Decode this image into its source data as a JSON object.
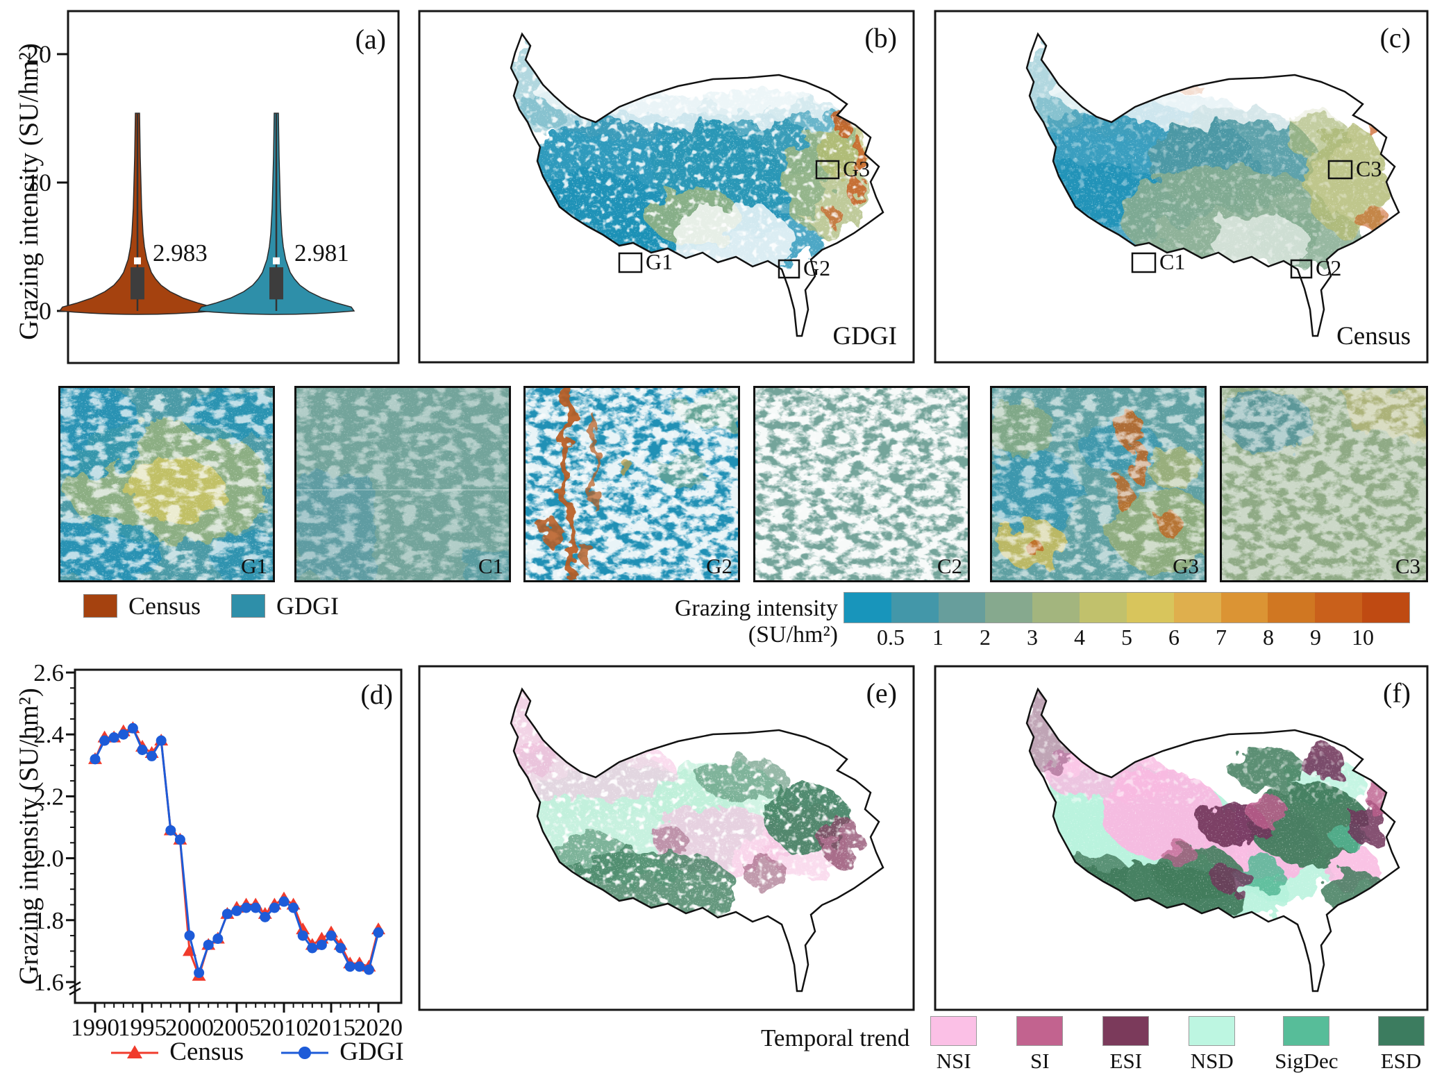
{
  "panels": {
    "a": "(a)",
    "b": "(b)",
    "c": "(c)",
    "d": "(d)",
    "e": "(e)",
    "f": "(f)"
  },
  "tiles": [
    {
      "label": "G1"
    },
    {
      "label": "C1"
    },
    {
      "label": "G2"
    },
    {
      "label": "C2"
    },
    {
      "label": "G3"
    },
    {
      "label": "C3"
    }
  ],
  "chart_data": [
    {
      "id": "a",
      "type": "violin",
      "ylabel": "Grazing intensity (SU/hm²)",
      "yticks": [
        0,
        10,
        20
      ],
      "ylim": [
        0,
        21
      ],
      "groups": [
        {
          "name": "Census",
          "color": "#A5420F",
          "mean": 2.983,
          "mean_label": "2.983",
          "q1": 0.9,
          "q3": 3.4,
          "mean_marker": 3.9,
          "max": 15.4
        },
        {
          "name": "GDGI",
          "color": "#2E8FA9",
          "mean": 2.981,
          "mean_label": "2.981",
          "q1": 0.9,
          "q3": 3.4,
          "mean_marker": 3.9,
          "max": 15.4
        }
      ]
    },
    {
      "id": "d",
      "type": "line",
      "ylabel": "Grazing intensity (SU/hm²)",
      "ylim": [
        1.6,
        2.6
      ],
      "yticks": [
        "1.6",
        "1.8",
        "2.0",
        "2.2",
        "2.4",
        "2.6"
      ],
      "xticks": [
        1990,
        1995,
        2000,
        2005,
        2010,
        2015,
        2020
      ],
      "axis_break_below": 1.6,
      "x": [
        1990,
        1991,
        1992,
        1993,
        1994,
        1995,
        1996,
        1997,
        1998,
        1999,
        2000,
        2001,
        2002,
        2003,
        2004,
        2005,
        2006,
        2007,
        2008,
        2009,
        2010,
        2011,
        2012,
        2013,
        2014,
        2015,
        2016,
        2017,
        2018,
        2019,
        2020
      ],
      "series": [
        {
          "name": "Census",
          "color": "#F03B2C",
          "marker": "triangle",
          "values": [
            2.32,
            2.39,
            2.39,
            2.41,
            2.42,
            2.36,
            2.34,
            2.38,
            2.09,
            2.06,
            1.7,
            1.62,
            1.72,
            1.74,
            1.82,
            1.84,
            1.85,
            1.85,
            1.82,
            1.85,
            1.87,
            1.85,
            1.77,
            1.72,
            1.74,
            1.76,
            1.72,
            1.66,
            1.66,
            1.65,
            1.77
          ]
        },
        {
          "name": "GDGI",
          "color": "#1D5BD8",
          "marker": "circle",
          "values": [
            2.32,
            2.38,
            2.39,
            2.4,
            2.42,
            2.35,
            2.33,
            2.38,
            2.09,
            2.06,
            1.75,
            1.63,
            1.72,
            1.74,
            1.82,
            1.83,
            1.84,
            1.84,
            1.81,
            1.84,
            1.86,
            1.84,
            1.75,
            1.71,
            1.72,
            1.75,
            1.71,
            1.65,
            1.65,
            1.64,
            1.76
          ]
        }
      ],
      "legend_position": "bottom"
    },
    {
      "id": "grazing-intensity-colorbar",
      "type": "colorbar",
      "title": "Grazing intensity (SU/hm²)",
      "tick_labels": [
        "0.5",
        "1",
        "2",
        "3",
        "4",
        "5",
        "6",
        "7",
        "8",
        "9",
        "10"
      ],
      "colors": [
        "#1895BB",
        "#4397A9",
        "#679E9C",
        "#86A98E",
        "#A3B57E",
        "#C1C16C",
        "#D8C55C",
        "#DFAF4D",
        "#DB9434",
        "#D07722",
        "#C9601B",
        "#BF4A12"
      ]
    },
    {
      "id": "temporal-trend-legend",
      "type": "categorical-legend",
      "title": "Temporal trend",
      "classes": [
        {
          "label": "NSI",
          "color": "#FBC0E6"
        },
        {
          "label": "SI",
          "color": "#C2638F"
        },
        {
          "label": "ESI",
          "color": "#7B3A5B"
        },
        {
          "label": "NSD",
          "color": "#BDF6E1"
        },
        {
          "label": "SigDec",
          "color": "#57BD99"
        },
        {
          "label": "ESD",
          "color": "#3C7C5F"
        }
      ]
    },
    {
      "id": "b",
      "type": "map",
      "dataset_label": "GDGI",
      "region_boxes": [
        "G1",
        "G2",
        "G3"
      ]
    },
    {
      "id": "c",
      "type": "map",
      "dataset_label": "Census",
      "region_boxes": [
        "C1",
        "C2",
        "C3"
      ]
    },
    {
      "id": "e",
      "type": "map"
    },
    {
      "id": "f",
      "type": "map"
    }
  ]
}
